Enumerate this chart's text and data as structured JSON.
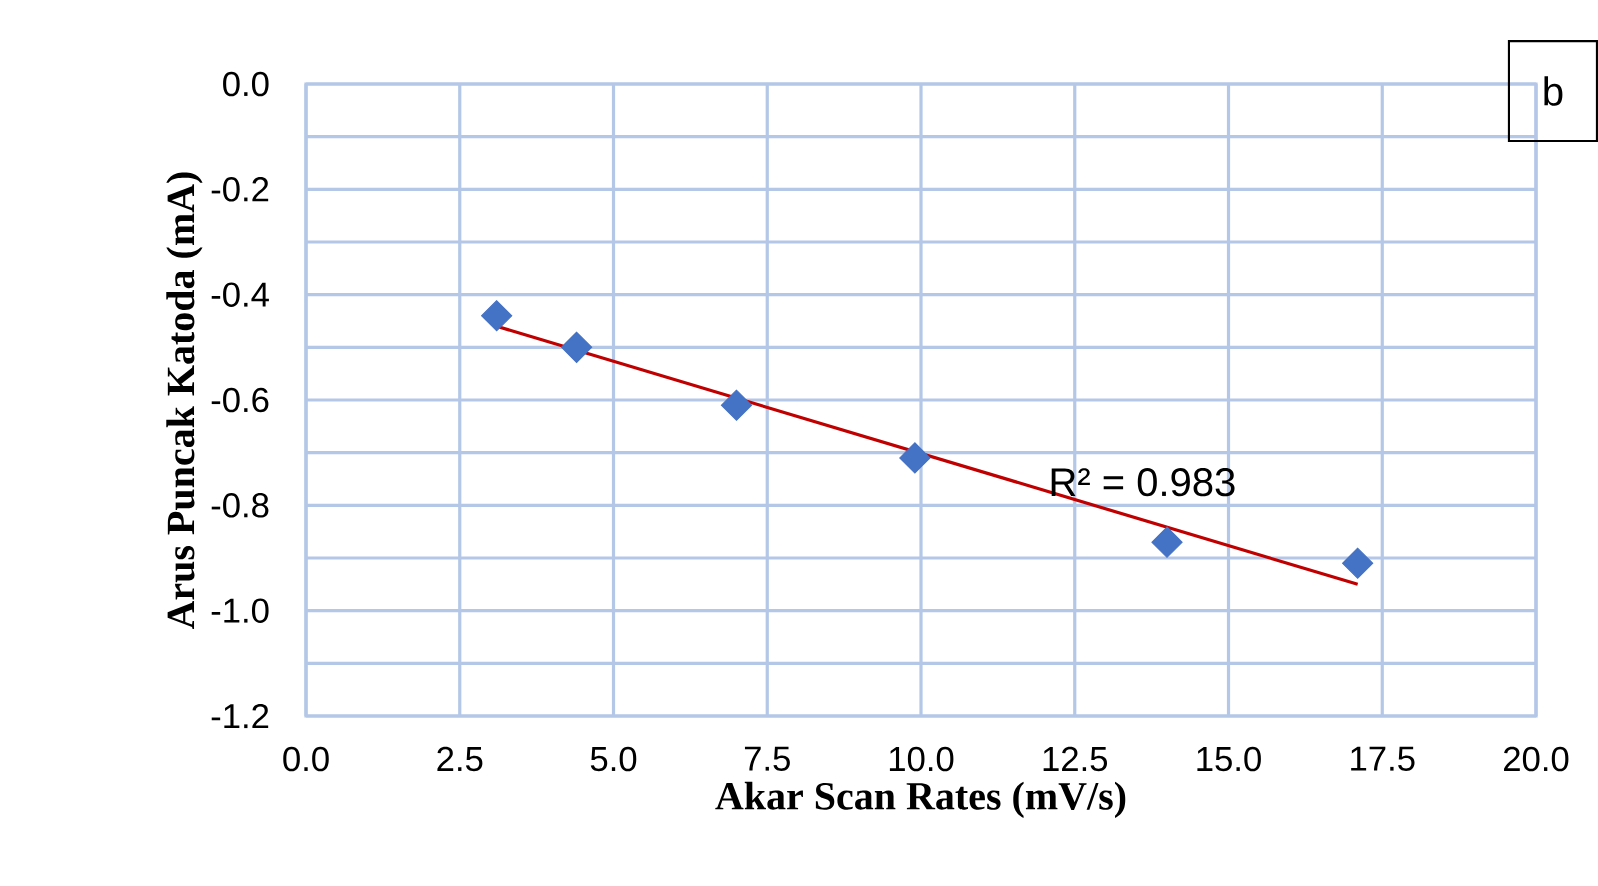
{
  "chart_data": {
    "type": "scatter",
    "xlabel": "Akar Scan Rates (mV/s)",
    "ylabel": "Arus Puncak Katoda (mA)",
    "series": [
      {
        "color": "#4472c4",
        "marker": "diamond",
        "x": [
          3.1,
          4.4,
          7.0,
          9.9,
          14.0,
          17.1
        ],
        "values": [
          -0.44,
          -0.5,
          -0.61,
          -0.71,
          -0.87,
          -0.91
        ]
      },
      {
        "type": "line",
        "color": "#c00000",
        "marker": "none",
        "line_style": "solid",
        "x": [
          3.1,
          17.1
        ],
        "values": [
          -0.46,
          -0.95
        ]
      }
    ],
    "xlim": [
      0,
      20
    ],
    "xticks": [
      {
        "value": 0,
        "label": "0.0"
      },
      2.5,
      {
        "value": 5,
        "label": "5.0"
      },
      7.5,
      {
        "value": 10,
        "label": "10.0"
      },
      12.5,
      {
        "value": 15,
        "label": "15.0"
      },
      17.5,
      {
        "value": 20,
        "label": "20.0"
      }
    ],
    "ylim": [
      -1.2,
      0
    ],
    "yticks": [
      {
        "value": -1.2,
        "label": "-1.2"
      },
      {
        "value": -1.1,
        "label": null
      },
      {
        "value": -1.0,
        "label": "-1.0"
      },
      {
        "value": -0.9,
        "label": null
      },
      {
        "value": -0.8,
        "label": "-0.8"
      },
      {
        "value": -0.7,
        "label": null
      },
      {
        "value": -0.6,
        "label": "-0.6"
      },
      {
        "value": -0.5,
        "label": null
      },
      {
        "value": -0.4,
        "label": "-0.4"
      },
      {
        "value": -0.3,
        "label": null
      },
      {
        "value": -0.2,
        "label": "-0.2"
      },
      {
        "value": -0.1,
        "label": null
      },
      {
        "value": 0,
        "label": "0.0"
      }
    ],
    "grid": true,
    "annotations": [
      "R² = 0.983",
      "b"
    ]
  }
}
